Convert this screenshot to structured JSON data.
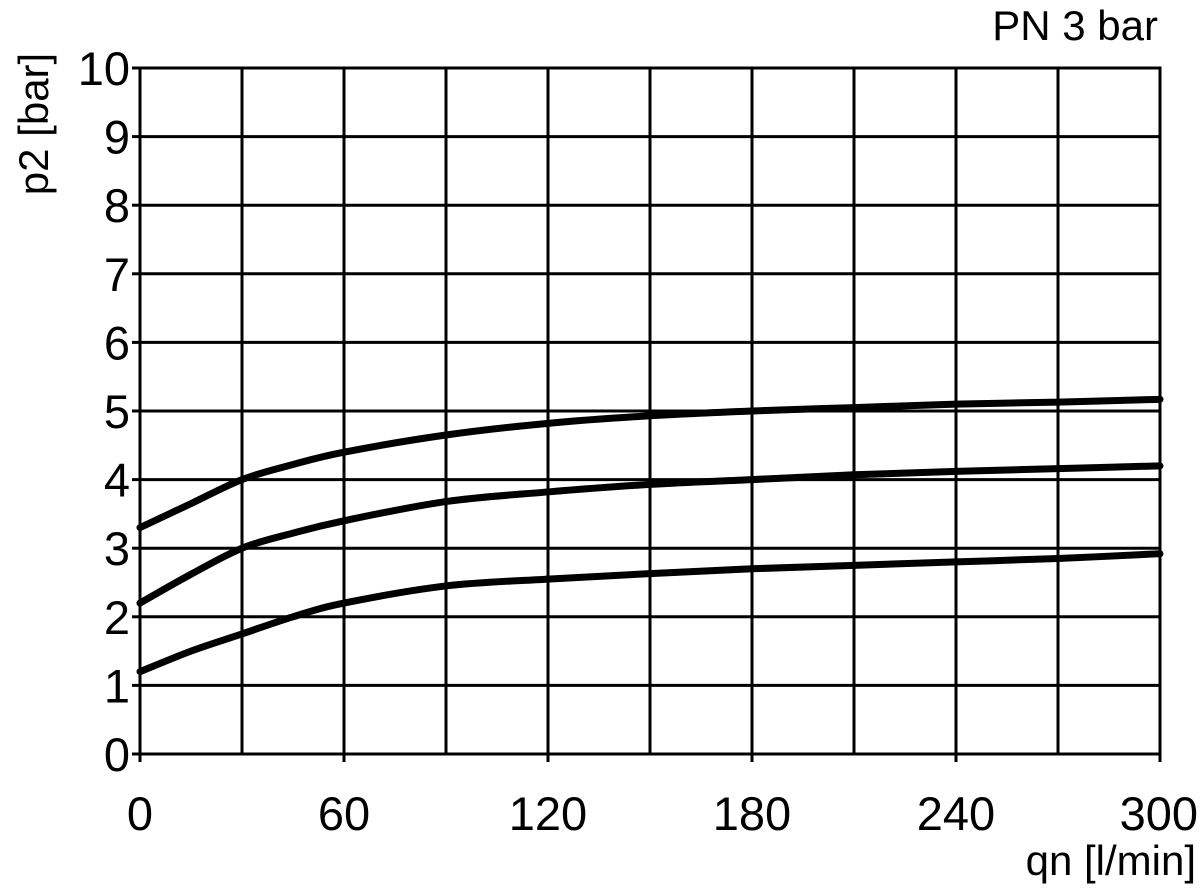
{
  "chart_data": {
    "type": "line",
    "title": "PN 3 bar",
    "xlabel": "qn [l/min]",
    "ylabel": "p2 [bar]",
    "xlim": [
      0,
      300
    ],
    "ylim": [
      0,
      10
    ],
    "x_ticks": [
      0,
      60,
      120,
      180,
      240,
      300
    ],
    "y_ticks": [
      0,
      1,
      2,
      3,
      4,
      5,
      6,
      7,
      8,
      9,
      10
    ],
    "x_grid_step": 30,
    "grid": true,
    "legend": "none",
    "colors": {
      "line": "#000000",
      "grid": "#000000",
      "background": "#ffffff"
    },
    "series": [
      {
        "x": [
          0,
          15,
          30,
          45,
          60,
          90,
          120,
          150,
          180,
          210,
          240,
          270,
          300
        ],
        "values": [
          3.3,
          3.65,
          4.0,
          4.22,
          4.4,
          4.65,
          4.82,
          4.93,
          5.0,
          5.05,
          5.1,
          5.13,
          5.17
        ]
      },
      {
        "x": [
          0,
          15,
          30,
          45,
          60,
          90,
          120,
          150,
          180,
          210,
          240,
          270,
          300
        ],
        "values": [
          2.2,
          2.62,
          3.0,
          3.22,
          3.4,
          3.68,
          3.82,
          3.93,
          4.0,
          4.07,
          4.12,
          4.16,
          4.2
        ]
      },
      {
        "x": [
          0,
          15,
          30,
          45,
          60,
          90,
          120,
          150,
          180,
          210,
          240,
          270,
          300
        ],
        "values": [
          1.2,
          1.5,
          1.75,
          2.0,
          2.2,
          2.45,
          2.55,
          2.63,
          2.7,
          2.75,
          2.8,
          2.85,
          2.92
        ]
      }
    ]
  }
}
